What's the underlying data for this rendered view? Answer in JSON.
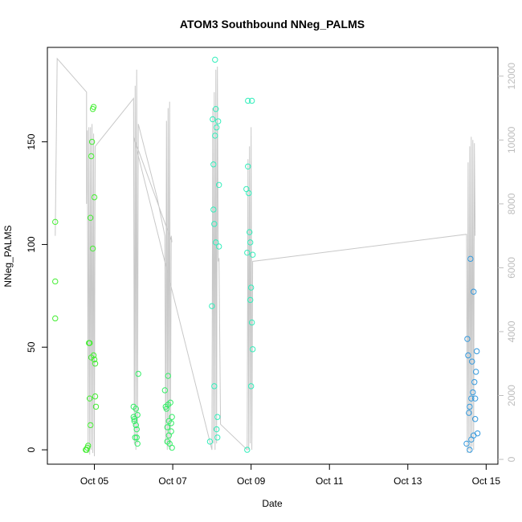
{
  "chart_data": {
    "type": "scatter",
    "title": "ATOM3 Southbound NNeg_PALMS",
    "xlabel": "Date",
    "ylabel": "NNeg_PALMS",
    "x_axis": {
      "unit": "days since Oct 04 00:00",
      "range": [
        3.8,
        15.3
      ],
      "ticks": [
        {
          "value": 5,
          "label": "Oct 05"
        },
        {
          "value": 7,
          "label": "Oct 07"
        },
        {
          "value": 9,
          "label": "Oct 09"
        },
        {
          "value": 11,
          "label": "Oct 11"
        },
        {
          "value": 13,
          "label": "Oct 13"
        },
        {
          "value": 15,
          "label": "Oct 15"
        }
      ]
    },
    "y_axis_left": {
      "range": [
        -7,
        196
      ],
      "ticks": [
        0,
        50,
        100,
        150
      ]
    },
    "y_axis_right": {
      "range": [
        -150,
        12900
      ],
      "ticks": [
        0,
        2000,
        4000,
        6000,
        8000,
        10000,
        12000
      ],
      "color": "#bdbdbd"
    },
    "series": [
      {
        "color": "#c8c8c8",
        "kind": "line",
        "axis": "right",
        "points": [
          [
            4.0,
            7000
          ],
          [
            4.05,
            12550
          ],
          [
            4.8,
            11500
          ],
          [
            4.8,
            8000
          ],
          [
            4.82,
            10300
          ],
          [
            4.84,
            200
          ],
          [
            4.86,
            10400
          ],
          [
            4.88,
            150
          ],
          [
            4.9,
            10400
          ],
          [
            4.92,
            300
          ],
          [
            4.94,
            10500
          ],
          [
            4.96,
            200
          ],
          [
            4.98,
            10200
          ],
          [
            5.0,
            100
          ],
          [
            5.02,
            9800
          ],
          [
            6.0,
            11300
          ],
          [
            6.02,
            500
          ],
          [
            6.04,
            11700
          ],
          [
            6.06,
            300
          ],
          [
            6.08,
            12200
          ],
          [
            6.1,
            500
          ],
          [
            6.12,
            10500
          ],
          [
            6.6,
            8200
          ],
          [
            6.8,
            7000
          ],
          [
            6.82,
            500
          ],
          [
            6.84,
            10600
          ],
          [
            6.86,
            300
          ],
          [
            6.88,
            11000
          ],
          [
            6.9,
            400
          ],
          [
            6.92,
            11200
          ],
          [
            6.94,
            300
          ],
          [
            6.96,
            7000
          ],
          [
            6.98,
            6800
          ],
          [
            6.0,
            10100
          ],
          [
            8.0,
            300
          ],
          [
            8.02,
            11000
          ],
          [
            8.04,
            500
          ],
          [
            8.06,
            11500
          ],
          [
            8.08,
            300
          ],
          [
            8.1,
            12200
          ],
          [
            8.12,
            500
          ],
          [
            8.14,
            12300
          ],
          [
            8.16,
            6200
          ],
          [
            8.18,
            6300
          ],
          [
            8.22,
            1100
          ],
          [
            8.9,
            300
          ],
          [
            8.92,
            9400
          ],
          [
            8.94,
            300
          ],
          [
            8.96,
            9800
          ],
          [
            8.98,
            500
          ],
          [
            9.0,
            10400
          ],
          [
            9.02,
            300
          ],
          [
            9.04,
            6200
          ],
          [
            14.5,
            7050
          ],
          [
            14.52,
            200
          ],
          [
            14.54,
            9300
          ],
          [
            14.56,
            300
          ],
          [
            14.58,
            9800
          ],
          [
            14.6,
            200
          ],
          [
            14.62,
            10100
          ],
          [
            14.64,
            400
          ],
          [
            14.66,
            10000
          ],
          [
            14.68,
            300
          ],
          [
            14.7,
            9900
          ],
          [
            14.72,
            7000
          ]
        ]
      },
      {
        "color": "#44ee33",
        "kind": "points",
        "axis": "left",
        "points": [
          [
            4.0,
            111
          ],
          [
            4.0,
            82
          ],
          [
            4.0,
            64
          ],
          [
            4.78,
            0
          ],
          [
            4.8,
            0
          ],
          [
            4.82,
            1
          ],
          [
            4.84,
            2
          ],
          [
            4.86,
            52
          ],
          [
            4.88,
            52
          ],
          [
            4.88,
            25
          ],
          [
            4.9,
            113
          ],
          [
            4.9,
            12
          ],
          [
            4.92,
            143
          ],
          [
            4.92,
            45
          ],
          [
            4.94,
            150
          ],
          [
            4.96,
            166
          ],
          [
            4.98,
            167
          ],
          [
            4.96,
            98
          ],
          [
            4.98,
            46
          ],
          [
            5.0,
            123
          ],
          [
            5.0,
            44
          ],
          [
            5.02,
            42
          ],
          [
            5.02,
            26
          ],
          [
            5.04,
            21
          ]
        ]
      },
      {
        "color": "#33ee66",
        "kind": "points",
        "axis": "left",
        "points": [
          [
            6.0,
            21
          ],
          [
            6.0,
            16
          ],
          [
            6.02,
            15
          ],
          [
            6.02,
            14
          ],
          [
            6.04,
            6
          ],
          [
            6.06,
            20
          ],
          [
            6.06,
            12
          ],
          [
            6.08,
            10
          ],
          [
            6.08,
            6
          ],
          [
            6.1,
            17
          ],
          [
            6.12,
            37
          ],
          [
            6.1,
            3
          ],
          [
            6.8,
            29
          ],
          [
            6.82,
            21
          ],
          [
            6.84,
            20
          ],
          [
            6.86,
            11
          ],
          [
            6.86,
            4
          ],
          [
            6.88,
            36
          ],
          [
            6.88,
            22
          ],
          [
            6.9,
            14
          ],
          [
            6.9,
            7
          ],
          [
            6.92,
            3
          ],
          [
            6.94,
            23
          ],
          [
            6.96,
            13
          ],
          [
            6.98,
            16
          ],
          [
            6.96,
            9
          ],
          [
            6.98,
            1
          ]
        ]
      },
      {
        "color": "#33eebb",
        "kind": "points",
        "axis": "left",
        "points": [
          [
            7.95,
            4
          ],
          [
            8.0,
            70
          ],
          [
            8.02,
            161
          ],
          [
            8.04,
            139
          ],
          [
            8.04,
            117
          ],
          [
            8.06,
            31
          ],
          [
            8.06,
            110
          ],
          [
            8.08,
            153
          ],
          [
            8.08,
            190
          ],
          [
            8.1,
            166
          ],
          [
            8.1,
            101
          ],
          [
            8.12,
            157
          ],
          [
            8.12,
            10
          ],
          [
            8.14,
            6
          ],
          [
            8.16,
            160
          ],
          [
            8.18,
            129
          ],
          [
            8.18,
            99
          ],
          [
            8.14,
            16
          ],
          [
            8.88,
            127
          ],
          [
            8.9,
            0
          ],
          [
            8.9,
            96
          ],
          [
            8.92,
            170
          ],
          [
            8.92,
            138
          ],
          [
            8.94,
            125
          ],
          [
            8.96,
            106
          ],
          [
            8.98,
            101
          ],
          [
            8.98,
            73
          ],
          [
            9.0,
            31
          ],
          [
            9.0,
            79
          ],
          [
            9.02,
            170
          ],
          [
            9.02,
            62
          ],
          [
            9.04,
            95
          ],
          [
            9.04,
            49
          ]
        ]
      },
      {
        "color": "#3399dd",
        "kind": "points",
        "axis": "left",
        "points": [
          [
            14.5,
            3
          ],
          [
            14.52,
            54
          ],
          [
            14.54,
            46
          ],
          [
            14.56,
            18
          ],
          [
            14.58,
            0
          ],
          [
            14.58,
            21
          ],
          [
            14.6,
            93
          ],
          [
            14.62,
            25
          ],
          [
            14.62,
            5
          ],
          [
            14.64,
            43
          ],
          [
            14.66,
            28
          ],
          [
            14.68,
            77
          ],
          [
            14.68,
            7
          ],
          [
            14.7,
            33
          ],
          [
            14.72,
            25
          ],
          [
            14.72,
            15
          ],
          [
            14.74,
            38
          ],
          [
            14.76,
            48
          ],
          [
            14.78,
            8
          ]
        ]
      }
    ]
  }
}
